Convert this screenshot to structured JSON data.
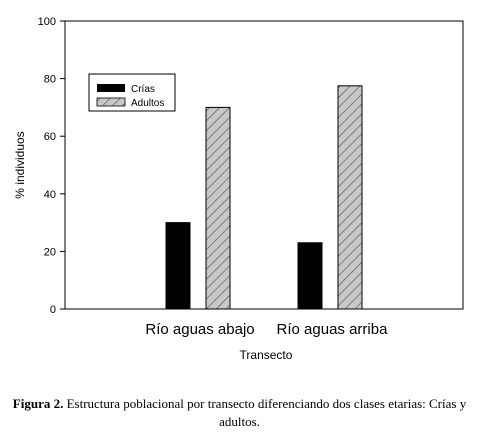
{
  "chart_data": {
    "type": "bar",
    "categories": [
      "Río aguas abajo",
      "Río aguas arriba"
    ],
    "series": [
      {
        "name": "Crías",
        "values": [
          30,
          23
        ],
        "color": "#000000",
        "pattern": "solid"
      },
      {
        "name": "Adultos",
        "values": [
          70,
          77.5
        ],
        "color": "#c8c8c8",
        "pattern": "diagonal-hatch"
      }
    ],
    "xlabel": "Transecto",
    "ylabel": "% individuos",
    "ylim": [
      0,
      100
    ],
    "yticks": [
      "0",
      "20",
      "40",
      "60",
      "80",
      "100"
    ],
    "grid": false,
    "legend_position": "top-left"
  },
  "caption": {
    "prefix": "Figura 2.",
    "text": " Estructura poblacional por transecto diferenciando dos clases etarias: Crías y adultos."
  }
}
